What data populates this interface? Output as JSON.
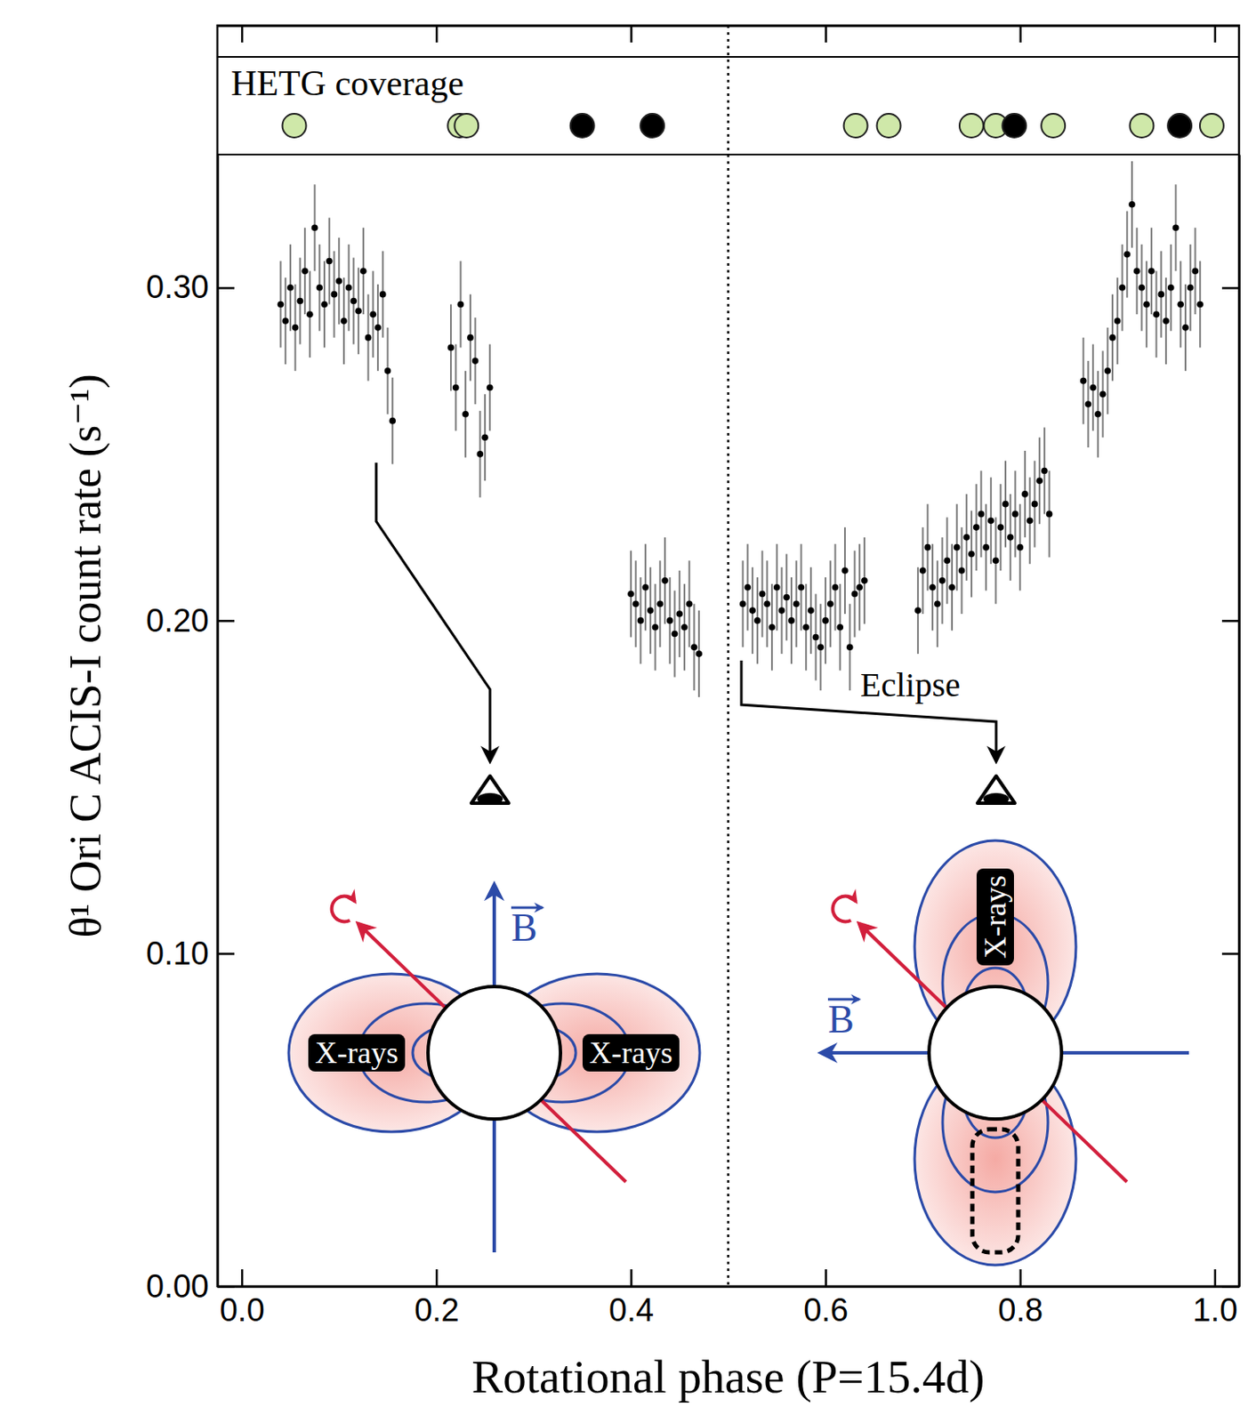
{
  "chart_data": {
    "type": "scatter",
    "x_label": "Rotational phase (P=15.4d)",
    "y_label": "θ¹ Ori C ACIS-I count rate (s⁻¹)",
    "xlim": [
      -0.025,
      1.025
    ],
    "ylim": [
      0,
      0.34
    ],
    "xticks": [
      {
        "value": 0,
        "label": "0.0"
      },
      {
        "value": 0.2,
        "label": "0.2"
      },
      {
        "value": 0.4,
        "label": "0.4"
      },
      {
        "value": 0.6,
        "label": "0.6"
      },
      {
        "value": 0.8,
        "label": "0.8"
      },
      {
        "value": 1,
        "label": "1.0"
      }
    ],
    "yticks": [
      {
        "value": 0,
        "label": "0.00"
      },
      {
        "value": 0.1,
        "label": "0.10"
      },
      {
        "value": 0.2,
        "label": "0.20"
      },
      {
        "value": 0.3,
        "label": "0.30"
      }
    ],
    "x": [
      0.04,
      0.045,
      0.05,
      0.055,
      0.06,
      0.065,
      0.07,
      0.075,
      0.08,
      0.085,
      0.09,
      0.095,
      0.1,
      0.105,
      0.11,
      0.115,
      0.12,
      0.125,
      0.13,
      0.135,
      0.14,
      0.145,
      0.15,
      0.155,
      0.215,
      0.22,
      0.225,
      0.23,
      0.235,
      0.24,
      0.245,
      0.25,
      0.255,
      0.4,
      0.405,
      0.41,
      0.415,
      0.42,
      0.425,
      0.43,
      0.435,
      0.44,
      0.445,
      0.45,
      0.455,
      0.46,
      0.465,
      0.47,
      0.515,
      0.52,
      0.525,
      0.53,
      0.535,
      0.54,
      0.545,
      0.55,
      0.555,
      0.56,
      0.565,
      0.57,
      0.575,
      0.58,
      0.585,
      0.59,
      0.595,
      0.6,
      0.605,
      0.61,
      0.615,
      0.62,
      0.625,
      0.63,
      0.635,
      0.64,
      0.695,
      0.7,
      0.705,
      0.71,
      0.715,
      0.72,
      0.725,
      0.73,
      0.735,
      0.74,
      0.745,
      0.75,
      0.755,
      0.76,
      0.765,
      0.77,
      0.775,
      0.78,
      0.785,
      0.79,
      0.795,
      0.8,
      0.805,
      0.81,
      0.815,
      0.82,
      0.825,
      0.83,
      0.865,
      0.87,
      0.875,
      0.88,
      0.885,
      0.89,
      0.895,
      0.9,
      0.905,
      0.91,
      0.915,
      0.92,
      0.925,
      0.93,
      0.935,
      0.94,
      0.945,
      0.95,
      0.955,
      0.96,
      0.965,
      0.97,
      0.975,
      0.98,
      0.985
    ],
    "series": [
      {
        "color": "#000000",
        "marker": "circle",
        "error": 0.013,
        "values": [
          0.295,
          0.29,
          0.3,
          0.288,
          0.296,
          0.305,
          0.292,
          0.318,
          0.3,
          0.295,
          0.308,
          0.298,
          0.302,
          0.29,
          0.3,
          0.296,
          0.293,
          0.305,
          0.285,
          0.292,
          0.288,
          0.298,
          0.275,
          0.26,
          0.282,
          0.27,
          0.295,
          0.262,
          0.285,
          0.278,
          0.25,
          0.255,
          0.27,
          0.208,
          0.205,
          0.2,
          0.21,
          0.203,
          0.198,
          0.205,
          0.212,
          0.2,
          0.196,
          0.202,
          0.198,
          0.205,
          0.192,
          0.19,
          0.205,
          0.21,
          0.203,
          0.2,
          0.208,
          0.205,
          0.198,
          0.21,
          0.203,
          0.207,
          0.2,
          0.205,
          0.21,
          0.198,
          0.203,
          0.195,
          0.192,
          0.2,
          0.205,
          0.21,
          0.198,
          0.215,
          0.192,
          0.208,
          0.21,
          0.212,
          0.203,
          0.215,
          0.222,
          0.21,
          0.205,
          0.212,
          0.218,
          0.21,
          0.222,
          0.215,
          0.225,
          0.22,
          0.228,
          0.232,
          0.222,
          0.23,
          0.218,
          0.228,
          0.235,
          0.225,
          0.232,
          0.222,
          0.238,
          0.23,
          0.235,
          0.242,
          0.245,
          0.232,
          0.272,
          0.265,
          0.27,
          0.262,
          0.268,
          0.275,
          0.285,
          0.29,
          0.3,
          0.31,
          0.325,
          0.305,
          0.3,
          0.295,
          0.305,
          0.292,
          0.298,
          0.29,
          0.3,
          0.318,
          0.295,
          0.288,
          0.3,
          0.305,
          0.295
        ]
      }
    ],
    "vline": 0.5,
    "hetg_coverage": {
      "title": "HETG coverage",
      "x": [
        0.054,
        0.224,
        0.231,
        0.35,
        0.422,
        0.631,
        0.665,
        0.75,
        0.775,
        0.794,
        0.834,
        0.925,
        0.964,
        0.997
      ],
      "colors": [
        "#cfe8a9",
        "#cfe8a9",
        "#cfe8a9",
        "#000000",
        "#000000",
        "#cfe8a9",
        "#cfe8a9",
        "#cfe8a9",
        "#cfe8a9",
        "#000000",
        "#cfe8a9",
        "#cfe8a9",
        "#000000",
        "#cfe8a9"
      ]
    },
    "annotations": [
      {
        "text": "Eclipse"
      }
    ],
    "diagrams": [
      {
        "field_label": "B",
        "labels": [
          "X-rays",
          "X-rays"
        ]
      },
      {
        "field_label": "B",
        "labels": [
          "X-rays"
        ]
      }
    ]
  }
}
